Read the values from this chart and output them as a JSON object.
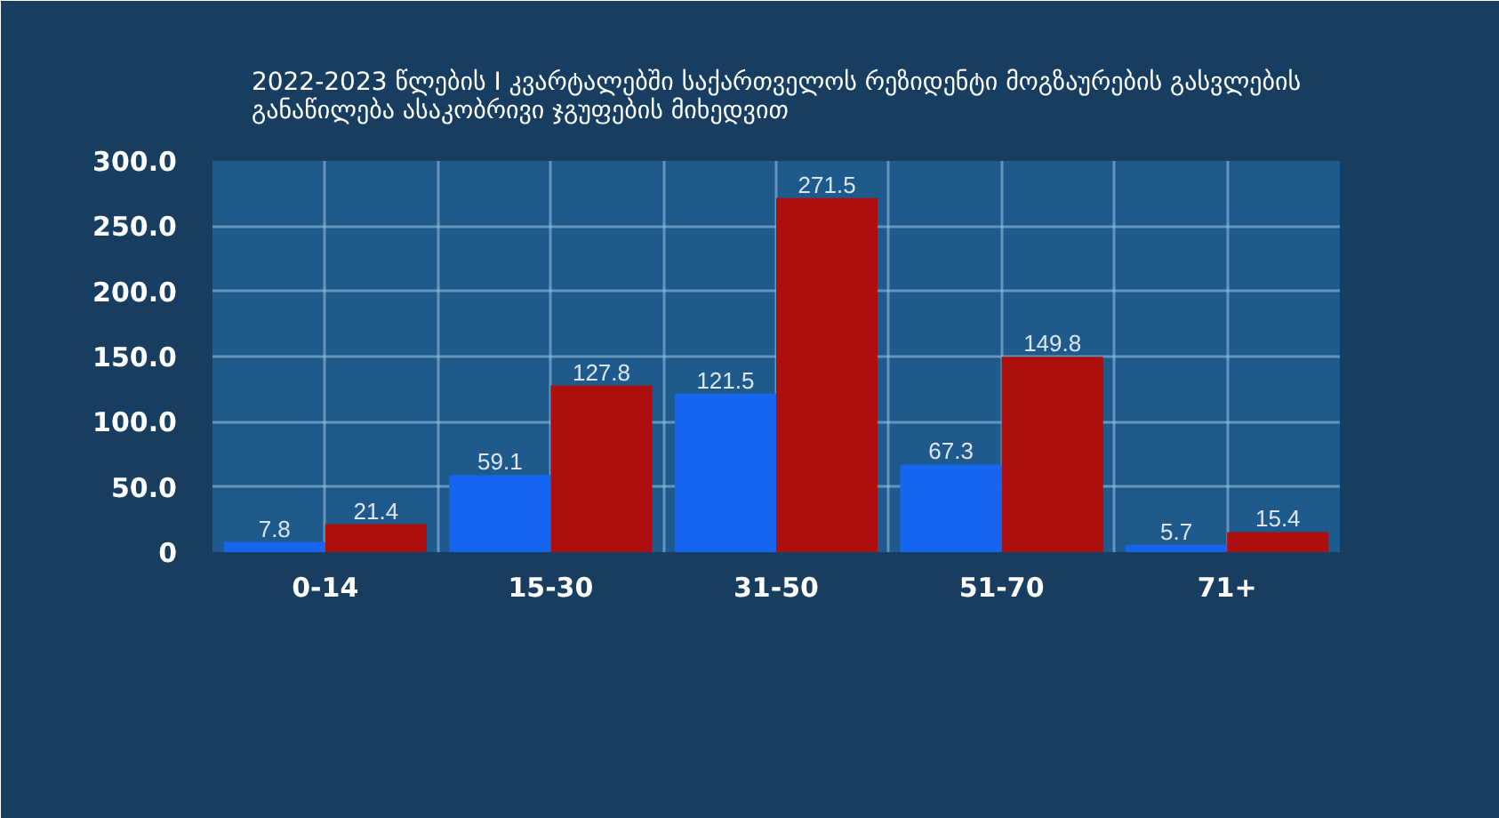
{
  "chart_data": {
    "type": "bar",
    "title": "2022-2023 წლების I კვარტალებში საქართველოს რეზიდენტი მოგზაურების გასვლების განაწილება ასაკობრივი ჯგუფების მიხედვით",
    "categories": [
      "0-14",
      "15-30",
      "31-50",
      "51-70",
      "71+"
    ],
    "series": [
      {
        "color": "#1565ee",
        "values": [
          7.8,
          59.1,
          121.5,
          67.3,
          5.7
        ]
      },
      {
        "color": "#ad0f0f",
        "values": [
          21.4,
          127.8,
          271.5,
          149.8,
          15.4
        ]
      }
    ],
    "ylim": [
      0,
      300
    ],
    "yticks": [
      0,
      {
        "value": 50,
        "label": "50.0"
      },
      {
        "value": 100,
        "label": "100.0"
      },
      {
        "value": 150,
        "label": "150.0"
      },
      {
        "value": 200,
        "label": "200.0"
      },
      {
        "value": 250,
        "label": "250.0"
      },
      {
        "value": 300,
        "label": "300.0"
      }
    ],
    "grid": true,
    "data_labels": true
  }
}
